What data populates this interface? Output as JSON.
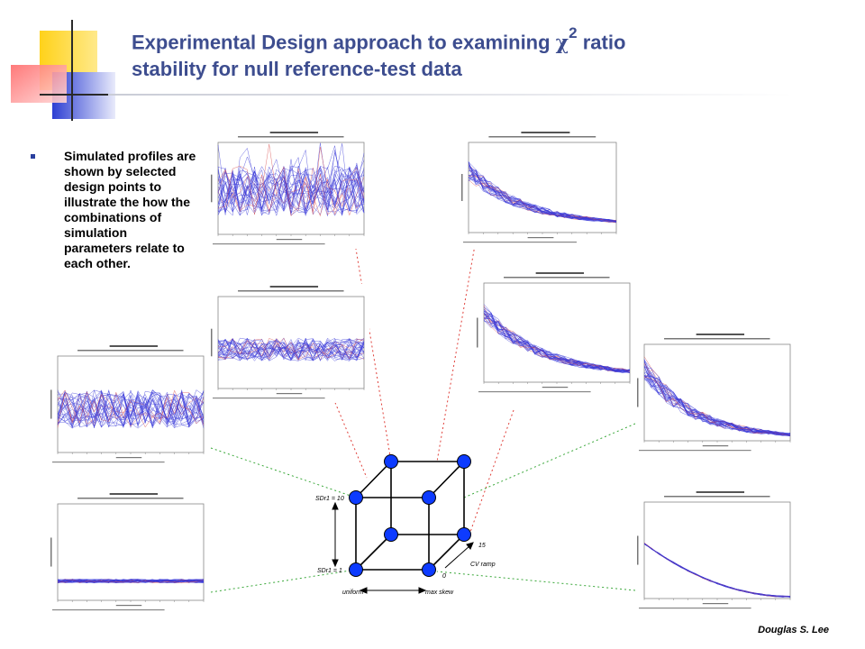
{
  "slide": {
    "title_pre": "Experimental Design approach to examining ",
    "title_chi": "χ",
    "title_sup": "2",
    "title_post": " ratio",
    "title_line2": "stability for null reference-test data",
    "bullet": "Simulated profiles are shown by selected design points to illustrate the how the combinations of simulation parameters relate to each other.",
    "author": "Douglas S. Lee"
  },
  "cube_labels": {
    "sd_high": "SDr1 = 10",
    "sd_low": "SDr1 = 1",
    "skew_low": "uniform",
    "skew_high": "max skew",
    "cv_label": "CV ramp",
    "cv_high": "15",
    "cv_low": "0"
  },
  "colors": {
    "title": "#3d4d8f",
    "profiles": "#3a3ad8",
    "vertex": "#0d3bff",
    "red_dotted": "#e0403a",
    "green_dotted": "#3aa83a"
  }
}
